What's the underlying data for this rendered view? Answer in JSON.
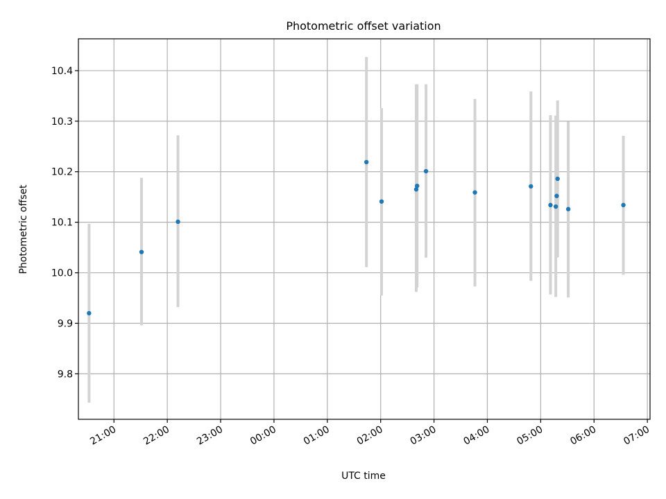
{
  "chart_data": {
    "type": "scatter",
    "title": "Photometric offset variation",
    "xlabel": "UTC time",
    "ylabel": "Photometric offset",
    "x_axis_type": "time",
    "x_range": [
      "20:20",
      "07:03"
    ],
    "ylim": [
      9.71,
      10.463
    ],
    "grid": true,
    "x_ticks": [
      "21:00",
      "22:00",
      "23:00",
      "00:00",
      "01:00",
      "02:00",
      "03:00",
      "04:00",
      "05:00",
      "06:00",
      "07:00"
    ],
    "y_ticks": [
      "9.8",
      "9.9",
      "10.0",
      "10.1",
      "10.2",
      "10.3",
      "10.4"
    ],
    "marker_color": "#1f77b4",
    "errorbar_color": "#d3d3d3",
    "points": [
      {
        "time": "20:32",
        "y": 9.92,
        "ylow": 9.743,
        "yhigh": 10.097
      },
      {
        "time": "21:31",
        "y": 10.041,
        "ylow": 9.896,
        "yhigh": 10.188
      },
      {
        "time": "22:12",
        "y": 10.101,
        "ylow": 9.932,
        "yhigh": 10.272
      },
      {
        "time": "01:44",
        "y": 10.219,
        "ylow": 10.011,
        "yhigh": 10.427
      },
      {
        "time": "02:01",
        "y": 10.141,
        "ylow": 9.955,
        "yhigh": 10.326
      },
      {
        "time": "02:40",
        "y": 10.165,
        "ylow": 9.962,
        "yhigh": 10.373
      },
      {
        "time": "02:41",
        "y": 10.172,
        "ylow": 9.971,
        "yhigh": 10.373
      },
      {
        "time": "02:51",
        "y": 10.201,
        "ylow": 10.03,
        "yhigh": 10.373
      },
      {
        "time": "03:46",
        "y": 10.159,
        "ylow": 9.973,
        "yhigh": 10.344
      },
      {
        "time": "04:49",
        "y": 10.171,
        "ylow": 9.984,
        "yhigh": 10.359
      },
      {
        "time": "05:11",
        "y": 10.134,
        "ylow": 9.957,
        "yhigh": 10.312
      },
      {
        "time": "05:17",
        "y": 10.131,
        "ylow": 9.952,
        "yhigh": 10.311
      },
      {
        "time": "05:18",
        "y": 10.152,
        "ylow": 10.03,
        "yhigh": 10.275
      },
      {
        "time": "05:19",
        "y": 10.186,
        "ylow": 10.031,
        "yhigh": 10.341
      },
      {
        "time": "05:31",
        "y": 10.126,
        "ylow": 9.951,
        "yhigh": 10.299
      },
      {
        "time": "06:33",
        "y": 10.134,
        "ylow": 9.996,
        "yhigh": 10.271
      }
    ]
  }
}
